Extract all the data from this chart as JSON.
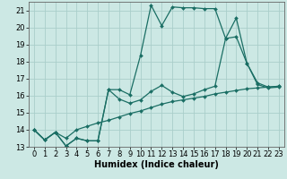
{
  "xlabel": "Humidex (Indice chaleur)",
  "background_color": "#cce8e4",
  "grid_color": "#aaceca",
  "line_color": "#1a6e64",
  "xlim": [
    -0.5,
    23.5
  ],
  "ylim": [
    13.0,
    21.5
  ],
  "xticks": [
    0,
    1,
    2,
    3,
    4,
    5,
    6,
    7,
    8,
    9,
    10,
    11,
    12,
    13,
    14,
    15,
    16,
    17,
    18,
    19,
    20,
    21,
    22,
    23
  ],
  "yticks": [
    13,
    14,
    15,
    16,
    17,
    18,
    19,
    20,
    21
  ],
  "line1_x": [
    0,
    1,
    2,
    3,
    4,
    5,
    6,
    7,
    8,
    9,
    10,
    11,
    12,
    13,
    14,
    15,
    16,
    17,
    18,
    19,
    20,
    21,
    22,
    23
  ],
  "line1_y": [
    14.0,
    13.4,
    13.85,
    13.5,
    14.0,
    14.2,
    14.4,
    14.55,
    14.75,
    14.95,
    15.1,
    15.3,
    15.5,
    15.65,
    15.75,
    15.85,
    15.95,
    16.1,
    16.2,
    16.3,
    16.4,
    16.45,
    16.5,
    16.55
  ],
  "line2_x": [
    0,
    1,
    2,
    3,
    4,
    5,
    6,
    7,
    8,
    9,
    10,
    11,
    12,
    13,
    14,
    15,
    16,
    17,
    18,
    19,
    20,
    21,
    22,
    23
  ],
  "line2_y": [
    14.0,
    13.4,
    13.85,
    13.05,
    13.5,
    13.35,
    13.35,
    16.35,
    16.35,
    16.05,
    18.35,
    21.3,
    20.1,
    21.2,
    21.15,
    21.15,
    21.1,
    21.1,
    19.35,
    20.55,
    17.9,
    16.65,
    16.45,
    16.5
  ],
  "line3_x": [
    0,
    1,
    2,
    3,
    4,
    5,
    6,
    7,
    8,
    9,
    10,
    11,
    12,
    13,
    14,
    15,
    16,
    17,
    18,
    19,
    20,
    21,
    22,
    23
  ],
  "line3_y": [
    14.0,
    13.4,
    13.85,
    13.05,
    13.5,
    13.35,
    13.35,
    16.35,
    15.8,
    15.55,
    15.75,
    16.25,
    16.6,
    16.2,
    15.95,
    16.1,
    16.35,
    16.55,
    19.35,
    19.45,
    17.9,
    16.75,
    16.5,
    16.55
  ],
  "marker": "D",
  "marker_size": 2.0,
  "linewidth": 0.9,
  "xlabel_fontsize": 7,
  "tick_fontsize": 6
}
